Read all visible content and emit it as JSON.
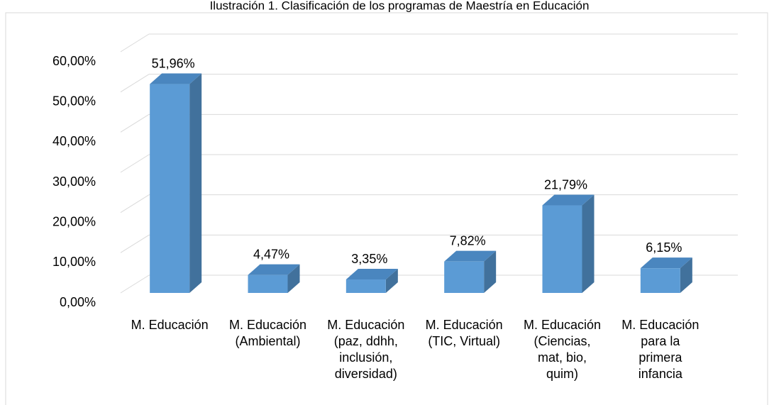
{
  "chart_data": {
    "type": "bar",
    "title": "Ilustración 1. Clasificación de los programas de Maestría en Educación",
    "categories": [
      "M. Educación",
      "M. Educación\n(Ambiental)",
      "M. Educación\n(paz, ddhh,\ninclusión,\ndiversidad)",
      "M. Educación\n(TIC, Virtual)",
      "M. Educación\n(Ciencias,\nmat, bio,\nquim)",
      "M. Educación\npara la\nprimera\ninfancia"
    ],
    "values": [
      51.96,
      4.47,
      3.35,
      7.82,
      21.79,
      6.15
    ],
    "value_labels": [
      "51,96%",
      "4,47%",
      "3,35%",
      "7,82%",
      "21,79%",
      "6,15%"
    ],
    "color": "#5b9bd5",
    "ylim": [
      0,
      60
    ],
    "yticks": [
      {
        "value": 0,
        "label": "0,00%"
      },
      {
        "value": 10,
        "label": "10,00%"
      },
      {
        "value": 20,
        "label": "20,00%"
      },
      {
        "value": 30,
        "label": "30,00%"
      },
      {
        "value": 40,
        "label": "40,00%"
      },
      {
        "value": 50,
        "label": "50,00%"
      },
      {
        "value": 60,
        "label": "60,00%"
      }
    ],
    "grid": true
  }
}
